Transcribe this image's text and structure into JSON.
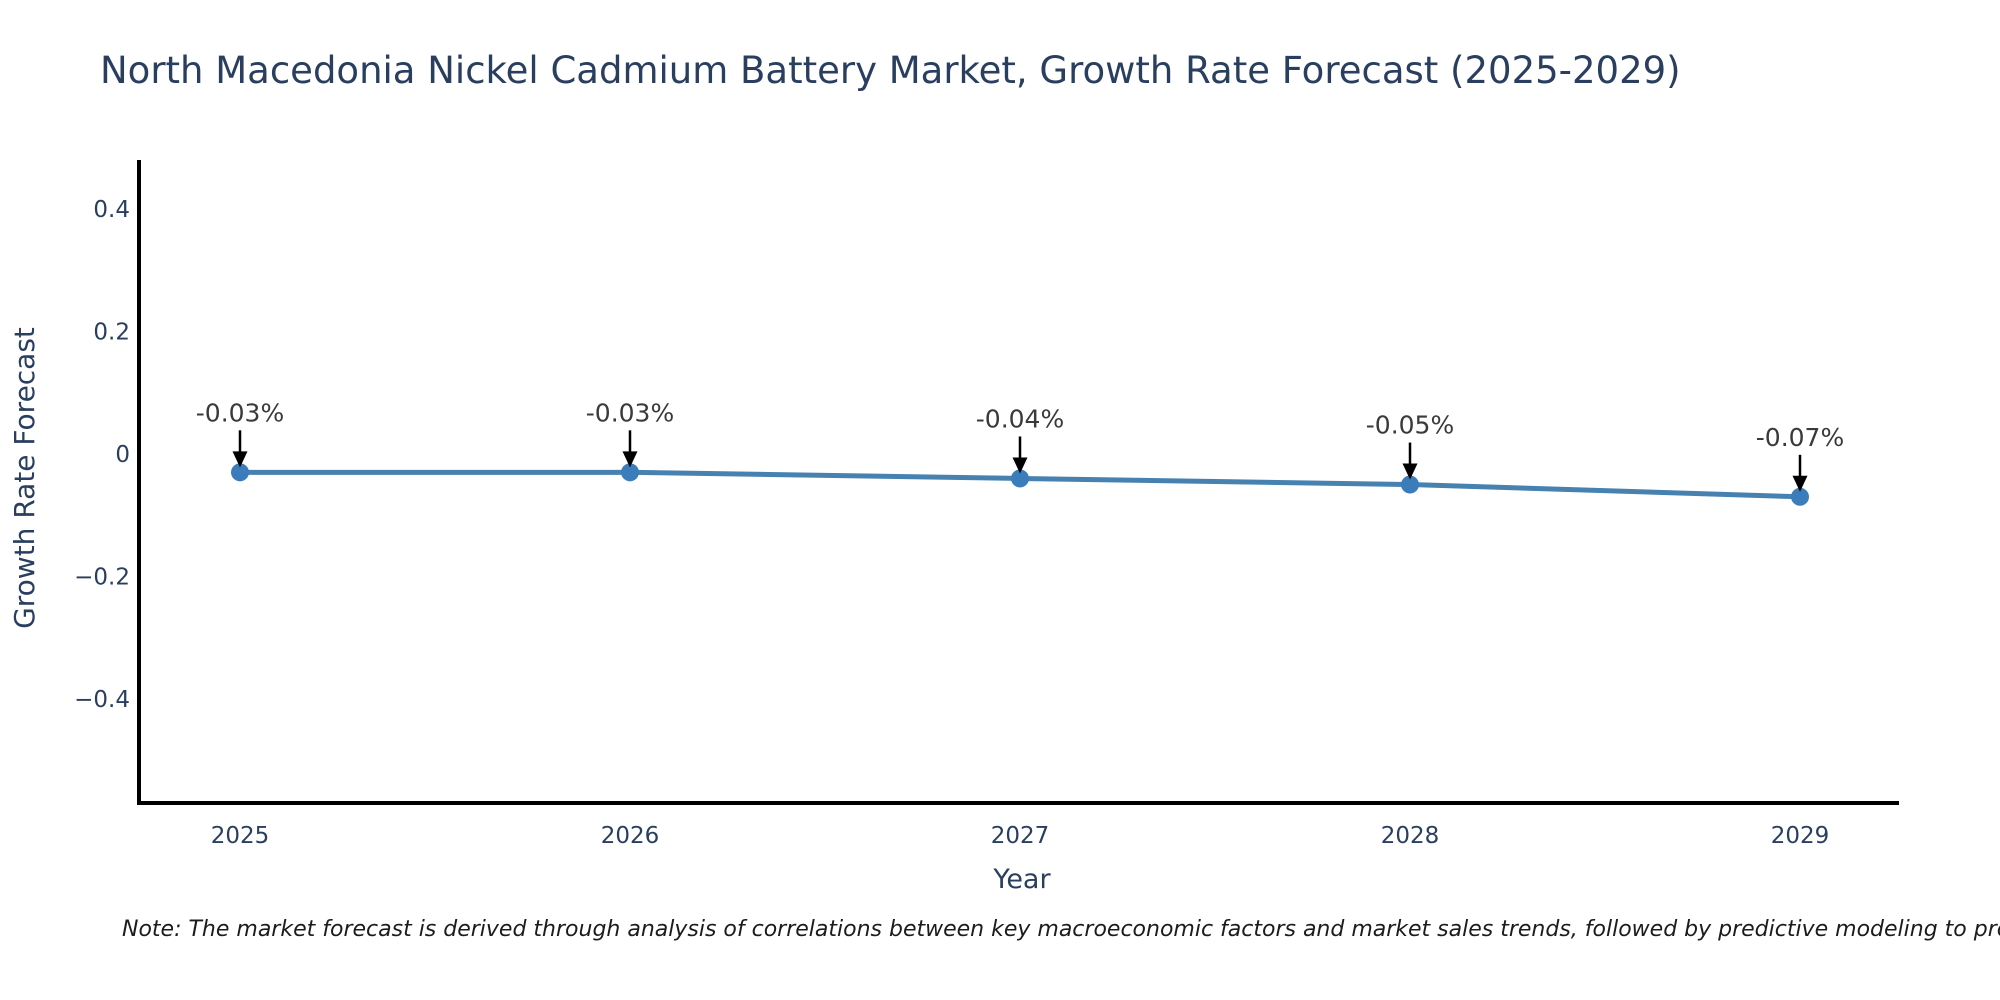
{
  "note": "Note: The market forecast is derived through analysis of correlations between key macroeconomic factors and market sales trends, followed by predictive modeling to project future sales trends.",
  "chart_data": {
    "type": "line",
    "title": "North Macedonia Nickel Cadmium Battery Market, Growth Rate Forecast (2025-2029)",
    "xlabel": "Year",
    "ylabel": "Growth Rate Forecast",
    "x": [
      2025,
      2026,
      2027,
      2028,
      2029
    ],
    "y": [
      -0.03,
      -0.03,
      -0.04,
      -0.05,
      -0.07
    ],
    "point_labels": [
      "-0.03%",
      "-0.03%",
      "-0.04%",
      "-0.05%",
      "-0.07%"
    ],
    "xtick_labels": [
      "2025",
      "2026",
      "2027",
      "2028",
      "2029"
    ],
    "yticks": [
      0.4,
      0.2,
      0,
      -0.2,
      -0.4
    ],
    "ytick_labels": [
      "0.4",
      "0.2",
      "0",
      "−0.2",
      "−0.4"
    ],
    "ylim": [
      -0.57,
      0.48
    ],
    "grid": false,
    "legend": false,
    "line_color": "#4681b0",
    "marker_color": "#3b7cba",
    "axis_color": "#000000",
    "arrow_color": "#000000",
    "text_color": "#2a3f5f",
    "annotation_color": "#3a3a3a"
  }
}
